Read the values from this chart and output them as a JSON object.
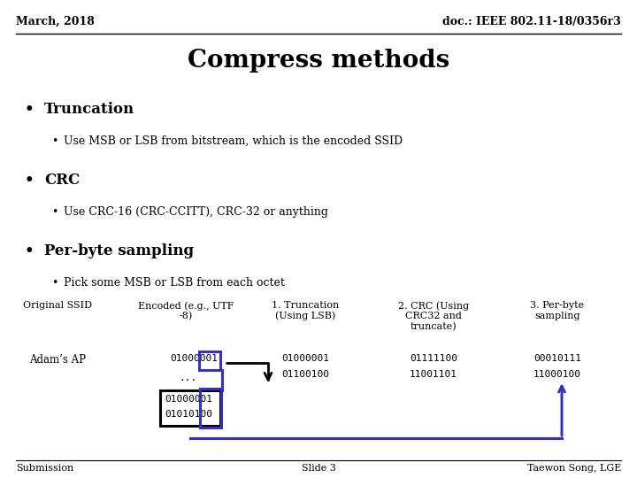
{
  "title": "Compress methods",
  "header_left": "March, 2018",
  "header_right": "doc.: IEEE 802.11-18/0356r3",
  "footer_left": "Submission",
  "footer_center": "Slide 3",
  "footer_right": "Taewon Song, LGE",
  "bullets": [
    {
      "text": "Truncation",
      "level": 1
    },
    {
      "text": "Use MSB or LSB from bitstream, which is the encoded SSID",
      "level": 2
    },
    {
      "text": "CRC",
      "level": 1
    },
    {
      "text": "Use CRC-16 (CRC-CCITT), CRC-32 or anything",
      "level": 2
    },
    {
      "text": "Per-byte sampling",
      "level": 1
    },
    {
      "text": "Pick some MSB or LSB from each octet",
      "level": 2
    }
  ],
  "table_headers": [
    "Original SSID",
    "Encoded (e.g., UTF\n-8)",
    "1. Truncation\n(Using LSB)",
    "2. CRC (Using\nCRC32 and\ntruncate)",
    "3. Per-byte\nsampling"
  ],
  "table_data": {
    "original_ssid": "Adam’s AP",
    "encoded_top": "01000001",
    "encoded_dots": "...",
    "encoded_box1": "01000001",
    "encoded_box2": "01010100",
    "truncation1": "01000001",
    "truncation2": "01100100",
    "crc1": "01111100",
    "crc2": "11001101",
    "perbyte1": "00010111",
    "perbyte2": "11000100"
  },
  "blue_color": "#3333BB",
  "black_color": "#000000",
  "bg_color": "#FFFFFF"
}
